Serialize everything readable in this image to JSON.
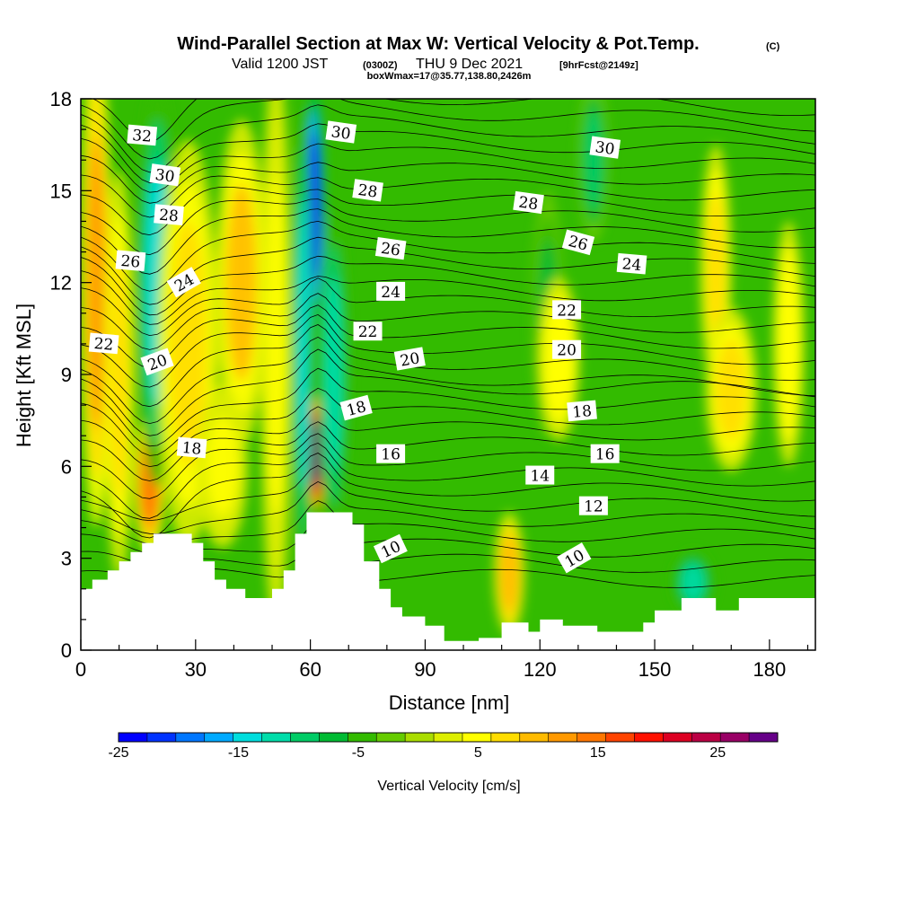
{
  "title": {
    "main": "Wind-Parallel Section at Max W: Vertical Velocity & Pot.Temp.",
    "copyright": "(C)",
    "subtitle_prefix": "Valid 1200 JST",
    "subtitle_z": "(0300Z)",
    "subtitle_date": "THU 9 Dec 2021",
    "subtitle_fcst": "[9hrFcst@2149z]",
    "box_info": "boxWmax=17@35.77,138.80,2426m"
  },
  "chart_data": {
    "type": "heatmap",
    "xlabel": "Distance [nm]",
    "ylabel": "Height [Kft MSL]",
    "xlim": [
      0,
      192
    ],
    "ylim": [
      0,
      18
    ],
    "x_ticks": [
      0,
      30,
      60,
      90,
      120,
      150,
      180
    ],
    "y_ticks": [
      0,
      3,
      6,
      9,
      12,
      15,
      18
    ],
    "colorbar": {
      "title": "Vertical Velocity [cm/s]",
      "tick_labels": [
        "-25",
        "-15",
        "-5",
        "5",
        "15",
        "25"
      ],
      "tick_values": [
        -25,
        -15,
        -5,
        5,
        15,
        25
      ],
      "range": [
        -25,
        30
      ],
      "colors": [
        "#0000ff",
        "#0033ff",
        "#0077ff",
        "#00aaff",
        "#00dddd",
        "#00ddaa",
        "#00cc66",
        "#00bb33",
        "#33bb00",
        "#66cc00",
        "#aadd00",
        "#ddee00",
        "#ffff00",
        "#ffdd00",
        "#ffbb00",
        "#ff9900",
        "#ff7700",
        "#ff4400",
        "#ff1100",
        "#dd0022",
        "#bb0044",
        "#990066",
        "#660088"
      ]
    },
    "background_color": "#33bb00",
    "terrain": [
      [
        0,
        2.0
      ],
      [
        3,
        2.0
      ],
      [
        3,
        2.3
      ],
      [
        7,
        2.3
      ],
      [
        7,
        2.6
      ],
      [
        10,
        2.6
      ],
      [
        10,
        2.9
      ],
      [
        13,
        2.9
      ],
      [
        13,
        3.2
      ],
      [
        16,
        3.2
      ],
      [
        16,
        3.5
      ],
      [
        19,
        3.5
      ],
      [
        19,
        3.8
      ],
      [
        29,
        3.8
      ],
      [
        29,
        3.5
      ],
      [
        32,
        3.5
      ],
      [
        32,
        2.9
      ],
      [
        35,
        2.9
      ],
      [
        35,
        2.3
      ],
      [
        38,
        2.3
      ],
      [
        38,
        2.0
      ],
      [
        43,
        2.0
      ],
      [
        43,
        1.7
      ],
      [
        50,
        1.7
      ],
      [
        50,
        2.0
      ],
      [
        53,
        2.0
      ],
      [
        53,
        2.6
      ],
      [
        56,
        2.6
      ],
      [
        56,
        3.8
      ],
      [
        59,
        3.8
      ],
      [
        59,
        4.5
      ],
      [
        71,
        4.5
      ],
      [
        71,
        4.1
      ],
      [
        74,
        4.1
      ],
      [
        74,
        2.9
      ],
      [
        78,
        2.9
      ],
      [
        78,
        2.0
      ],
      [
        81,
        2.0
      ],
      [
        81,
        1.4
      ],
      [
        84,
        1.4
      ],
      [
        84,
        1.1
      ],
      [
        90,
        1.1
      ],
      [
        90,
        0.8
      ],
      [
        95,
        0.8
      ],
      [
        95,
        0.3
      ],
      [
        104,
        0.3
      ],
      [
        104,
        0.4
      ],
      [
        110,
        0.4
      ],
      [
        110,
        0.9
      ],
      [
        117,
        0.9
      ],
      [
        117,
        0.6
      ],
      [
        120,
        0.6
      ],
      [
        120,
        1.0
      ],
      [
        126,
        1.0
      ],
      [
        126,
        0.8
      ],
      [
        135,
        0.8
      ],
      [
        135,
        0.6
      ],
      [
        147,
        0.6
      ],
      [
        147,
        0.9
      ],
      [
        150,
        0.9
      ],
      [
        150,
        1.3
      ],
      [
        157,
        1.3
      ],
      [
        157,
        1.7
      ],
      [
        166,
        1.7
      ],
      [
        166,
        1.3
      ],
      [
        172,
        1.3
      ],
      [
        172,
        1.7
      ],
      [
        192,
        1.7
      ]
    ],
    "w_features": [
      {
        "x": 4,
        "y": 12,
        "rx": 3,
        "ry": 6,
        "w": 12
      },
      {
        "x": 10,
        "y": 9,
        "rx": 3,
        "ry": 5,
        "w": 8
      },
      {
        "x": 18,
        "y": 5.5,
        "rx": 3,
        "ry": 1.8,
        "w": 15
      },
      {
        "x": 20,
        "y": 12,
        "rx": 4,
        "ry": 5,
        "w": -14
      },
      {
        "x": 28,
        "y": 10,
        "rx": 6,
        "ry": 5,
        "w": 7
      },
      {
        "x": 42,
        "y": 12,
        "rx": 5,
        "ry": 4,
        "w": 9
      },
      {
        "x": 37,
        "y": 6,
        "rx": 5,
        "ry": 2,
        "w": 4
      },
      {
        "x": 61.5,
        "y": 6.4,
        "rx": 1.6,
        "ry": 1.4,
        "w": 29
      },
      {
        "x": 61,
        "y": 14.5,
        "rx": 2,
        "ry": 3,
        "w": -24
      },
      {
        "x": 58,
        "y": 10,
        "rx": 2,
        "ry": 6,
        "w": -14
      },
      {
        "x": 51,
        "y": 10,
        "rx": 3,
        "ry": 7,
        "w": 5
      },
      {
        "x": 66,
        "y": 9,
        "rx": 3,
        "ry": 4,
        "w": -13
      },
      {
        "x": 112,
        "y": 2.5,
        "rx": 3,
        "ry": 1.5,
        "w": 10
      },
      {
        "x": 166,
        "y": 12.5,
        "rx": 3,
        "ry": 3,
        "w": 7
      },
      {
        "x": 160,
        "y": 2.2,
        "rx": 4,
        "ry": 0.8,
        "w": -12
      },
      {
        "x": 122,
        "y": 11,
        "rx": 3,
        "ry": 3,
        "w": -8
      },
      {
        "x": 134,
        "y": 16,
        "rx": 3,
        "ry": 2,
        "w": -9
      },
      {
        "x": 170,
        "y": 8.5,
        "rx": 5,
        "ry": 2,
        "w": 7
      },
      {
        "x": 125,
        "y": 9.5,
        "rx": 4,
        "ry": 2,
        "w": 6
      },
      {
        "x": 185,
        "y": 10,
        "rx": 3,
        "ry": 3,
        "w": 6
      }
    ],
    "contour_labels": [
      {
        "text": "32",
        "x": 16,
        "y": 16.8,
        "angle": 5
      },
      {
        "text": "30",
        "x": 22,
        "y": 15.5,
        "angle": 8
      },
      {
        "text": "28",
        "x": 23,
        "y": 14.2,
        "angle": 5
      },
      {
        "text": "26",
        "x": 13,
        "y": 12.7,
        "angle": 5
      },
      {
        "text": "24",
        "x": 27,
        "y": 12.0,
        "angle": -30
      },
      {
        "text": "22",
        "x": 6,
        "y": 10.0,
        "angle": 5
      },
      {
        "text": "20",
        "x": 20,
        "y": 9.4,
        "angle": -20
      },
      {
        "text": "18",
        "x": 29,
        "y": 6.6,
        "angle": 5
      },
      {
        "text": "30",
        "x": 68,
        "y": 16.9,
        "angle": 8
      },
      {
        "text": "28",
        "x": 75,
        "y": 15.0,
        "angle": 8
      },
      {
        "text": "26",
        "x": 81,
        "y": 13.1,
        "angle": 8
      },
      {
        "text": "24",
        "x": 81,
        "y": 11.7,
        "angle": 0
      },
      {
        "text": "22",
        "x": 75,
        "y": 10.4,
        "angle": 0
      },
      {
        "text": "20",
        "x": 86,
        "y": 9.5,
        "angle": -10
      },
      {
        "text": "18",
        "x": 72,
        "y": 7.9,
        "angle": -15
      },
      {
        "text": "16",
        "x": 81,
        "y": 6.4,
        "angle": 0
      },
      {
        "text": "10",
        "x": 81,
        "y": 3.3,
        "angle": -25
      },
      {
        "text": "30",
        "x": 137,
        "y": 16.4,
        "angle": 8
      },
      {
        "text": "28",
        "x": 117,
        "y": 14.6,
        "angle": 8
      },
      {
        "text": "26",
        "x": 130,
        "y": 13.3,
        "angle": 15
      },
      {
        "text": "24",
        "x": 144,
        "y": 12.6,
        "angle": 5
      },
      {
        "text": "22",
        "x": 127,
        "y": 11.1,
        "angle": 0
      },
      {
        "text": "20",
        "x": 127,
        "y": 9.8,
        "angle": 0
      },
      {
        "text": "18",
        "x": 131,
        "y": 7.8,
        "angle": -5
      },
      {
        "text": "16",
        "x": 137,
        "y": 6.4,
        "angle": 0
      },
      {
        "text": "14",
        "x": 120,
        "y": 5.7,
        "angle": 0
      },
      {
        "text": "12",
        "x": 134,
        "y": 4.7,
        "angle": 0
      },
      {
        "text": "10",
        "x": 129,
        "y": 3.0,
        "angle": -30
      }
    ]
  }
}
